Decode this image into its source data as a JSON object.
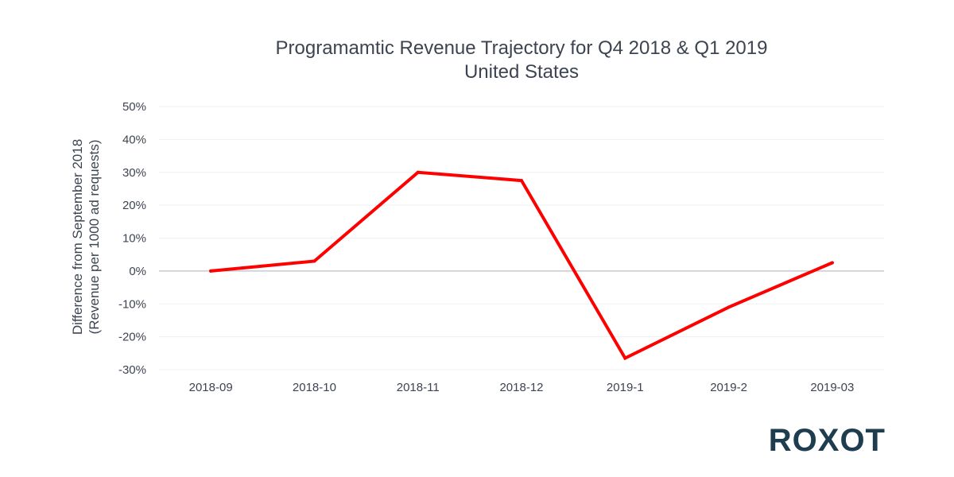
{
  "chart_data": {
    "type": "line",
    "title": "Programamtic Revenue Trajectory for Q4 2018 & Q1 2019",
    "subtitle": "United States",
    "xlabel": "",
    "ylabel": "Difference from September 2018",
    "ylabel_line2": "(Revenue per 1000 ad requests)",
    "categories": [
      "2018-09",
      "2018-10",
      "2018-11",
      "2018-12",
      "2019-1",
      "2019-2",
      "2019-03"
    ],
    "series": [
      {
        "values": [
          0,
          3,
          30,
          27.5,
          -26.5,
          -11,
          2.5
        ],
        "color": "#ff0000"
      }
    ],
    "y_ticks": [
      50,
      40,
      30,
      20,
      10,
      0,
      -10,
      -20,
      -30
    ],
    "y_tick_format": "percent",
    "ylim": [
      -30,
      50
    ],
    "grid": true,
    "zero_line": true
  },
  "branding": {
    "logo_text": "ROXOT",
    "logo_color": "#1e3d4f"
  }
}
